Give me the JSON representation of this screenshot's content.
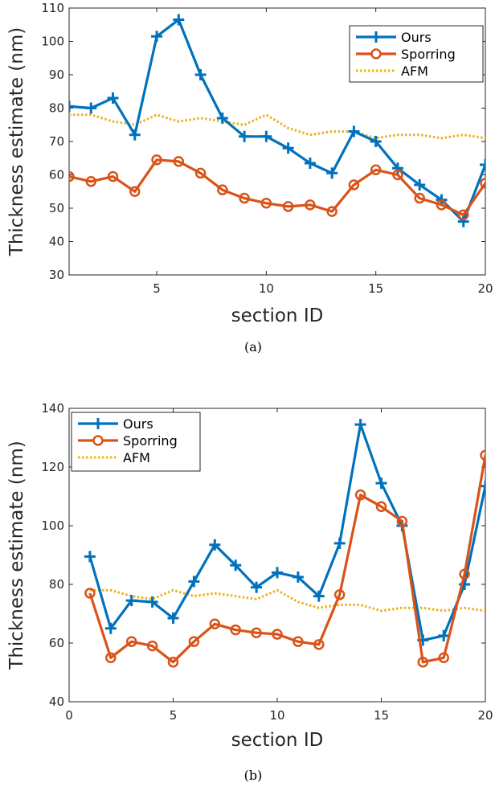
{
  "chart_data": [
    {
      "type": "line",
      "caption": "(a)",
      "xlabel": "section ID",
      "ylabel": "Thickness estimate (nm)",
      "xlim": [
        1,
        20
      ],
      "ylim": [
        30,
        110
      ],
      "xticks": [
        5,
        10,
        15,
        20
      ],
      "yticks": [
        30,
        40,
        50,
        60,
        70,
        80,
        90,
        100,
        110
      ],
      "grid": false,
      "legend_position": "top-right",
      "series": [
        {
          "name": "Ours",
          "color": "#0072BD",
          "marker": "plus",
          "style": "solid",
          "x": [
            1,
            2,
            3,
            4,
            5,
            6,
            7,
            8,
            9,
            10,
            11,
            12,
            13,
            14,
            15,
            16,
            17,
            18,
            19,
            20
          ],
          "values": [
            80.5,
            80,
            83,
            72,
            101.5,
            106.5,
            90,
            77,
            71.5,
            71.5,
            68,
            63.5,
            60.5,
            73,
            70,
            62,
            57,
            52.5,
            46,
            63
          ]
        },
        {
          "name": "Sporring",
          "color": "#D95319",
          "marker": "circle",
          "style": "solid",
          "x": [
            1,
            2,
            3,
            4,
            5,
            6,
            7,
            8,
            9,
            10,
            11,
            12,
            13,
            14,
            15,
            16,
            17,
            18,
            19,
            20
          ],
          "values": [
            59.5,
            58,
            59.5,
            55,
            64.5,
            64,
            60.5,
            55.5,
            53,
            51.5,
            50.5,
            51,
            49,
            57,
            61.5,
            60,
            53,
            51,
            48,
            57.5
          ]
        },
        {
          "name": "AFM",
          "color": "#EDB120",
          "marker": "none",
          "style": "dotted",
          "x": [
            1,
            2,
            3,
            4,
            5,
            6,
            7,
            8,
            9,
            10,
            11,
            12,
            13,
            14,
            15,
            16,
            17,
            18,
            19,
            20
          ],
          "values": [
            78,
            78,
            76,
            75,
            78,
            76,
            77,
            76,
            75,
            78,
            74,
            72,
            73,
            73,
            71,
            72,
            72,
            71,
            72,
            71
          ]
        }
      ]
    },
    {
      "type": "line",
      "caption": "(b)",
      "xlabel": "section ID",
      "ylabel": "Thickness estimate (nm)",
      "xlim": [
        0,
        20
      ],
      "ylim": [
        40,
        140
      ],
      "xticks": [
        0,
        5,
        10,
        15,
        20
      ],
      "yticks": [
        40,
        60,
        80,
        100,
        120,
        140
      ],
      "grid": false,
      "legend_position": "top-left",
      "series": [
        {
          "name": "Ours",
          "color": "#0072BD",
          "marker": "plus",
          "style": "solid",
          "x": [
            1,
            2,
            3,
            4,
            5,
            6,
            7,
            8,
            9,
            10,
            11,
            12,
            13,
            14,
            15,
            16,
            17,
            18,
            19,
            20
          ],
          "values": [
            89.5,
            65,
            74.5,
            74,
            68.5,
            81,
            93.5,
            86.5,
            79,
            84,
            82.5,
            76,
            94,
            134.5,
            114.5,
            100,
            61,
            62.5,
            80,
            113.5
          ]
        },
        {
          "name": "Sporring",
          "color": "#D95319",
          "marker": "circle",
          "style": "solid",
          "x": [
            1,
            2,
            3,
            4,
            5,
            6,
            7,
            8,
            9,
            10,
            11,
            12,
            13,
            14,
            15,
            16,
            17,
            18,
            19,
            20
          ],
          "values": [
            77,
            55,
            60.5,
            59,
            53.5,
            60.5,
            66.5,
            64.5,
            63.5,
            63,
            60.5,
            59.5,
            76.5,
            110.5,
            106.5,
            101.5,
            53.5,
            55,
            83.5,
            124
          ]
        },
        {
          "name": "AFM",
          "color": "#EDB120",
          "marker": "none",
          "style": "dotted",
          "x": [
            1,
            2,
            3,
            4,
            5,
            6,
            7,
            8,
            9,
            10,
            11,
            12,
            13,
            14,
            15,
            16,
            17,
            18,
            19,
            20
          ],
          "values": [
            78,
            78,
            76,
            75,
            78,
            76,
            77,
            76,
            75,
            78,
            74,
            72,
            73,
            73,
            71,
            72,
            72,
            71,
            72,
            71
          ]
        }
      ]
    }
  ]
}
